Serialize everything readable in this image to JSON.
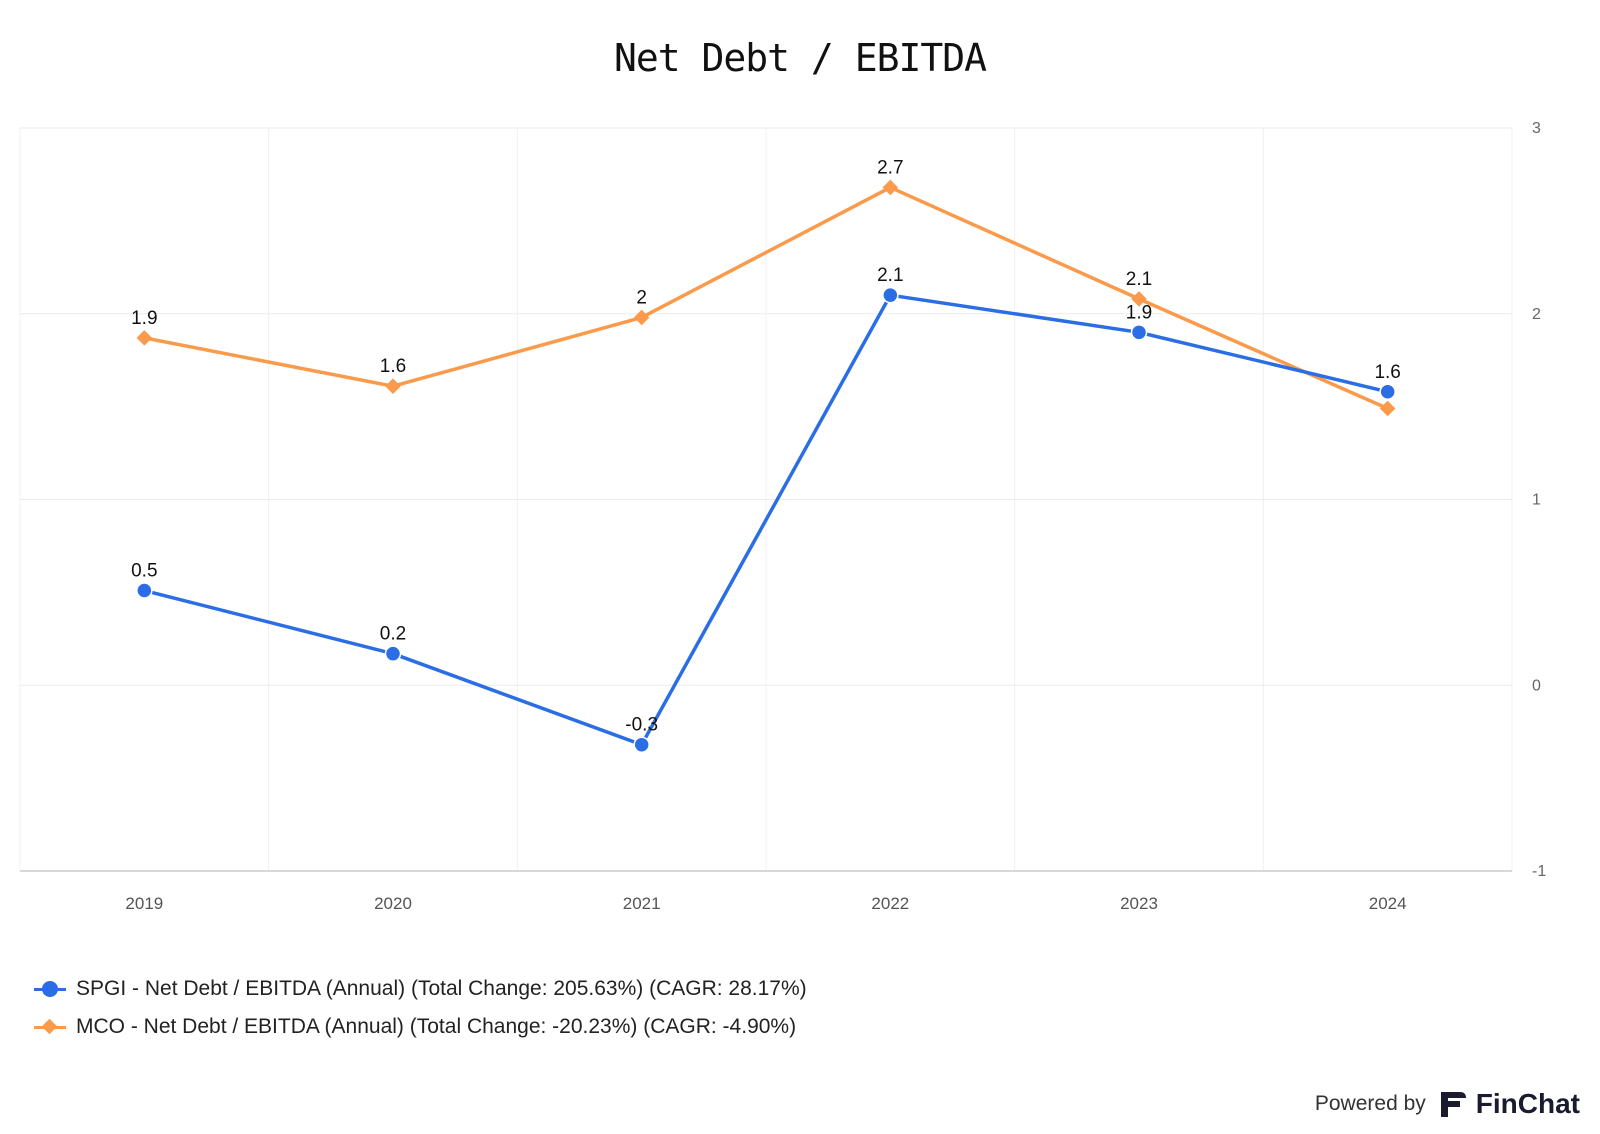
{
  "chart_data": {
    "type": "line",
    "title": "Net Debt / EBITDA",
    "categories": [
      "2019",
      "2020",
      "2021",
      "2022",
      "2023",
      "2024"
    ],
    "ylim": [
      -1,
      3
    ],
    "yticks": [
      "3",
      "2",
      "1",
      "0",
      "-1"
    ],
    "grid": true,
    "y_axis_side": "right",
    "legend_position": "bottom-left",
    "series": [
      {
        "name": "SPGI - Net Debt / EBITDA (Annual) (Total Change: 205.63%) (CAGR: 28.17%)",
        "values": [
          0.51,
          0.17,
          -0.32,
          2.1,
          1.9,
          1.58
        ],
        "labels": [
          "0.5",
          "0.2",
          "-0.3",
          "2.1",
          "1.9",
          "1.6"
        ],
        "color": "#2b6de5",
        "marker": "circle"
      },
      {
        "name": "MCO - Net Debt / EBITDA (Annual) (Total Change: -20.23%) (CAGR: -4.90%)",
        "values": [
          1.87,
          1.61,
          1.98,
          2.68,
          2.08,
          1.49
        ],
        "labels": [
          "1.9",
          "1.6",
          "2",
          "2.7",
          "2.1",
          ""
        ],
        "color": "#fa9a4a",
        "marker": "diamond"
      }
    ]
  },
  "footer": {
    "powered_by": "Powered by",
    "brand": "FinChat"
  }
}
